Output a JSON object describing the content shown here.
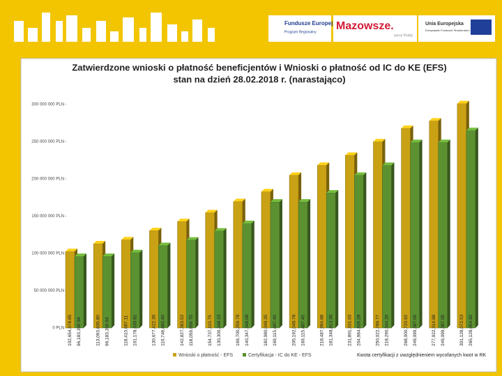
{
  "header": {
    "logo1": "Fundusze Europejskie",
    "logo1_sub": "Program Regionalny",
    "logo2": "Mazowsze.",
    "logo2_sub": "serce Polski",
    "logo3": "Unia Europejska",
    "logo3_sub": "Europejskie Fundusze Strukturalne i Inwestycyjne"
  },
  "chart_data": {
    "type": "bar3d",
    "title": "Zatwierdzone wnioski o płatność beneficjentów i Wnioski o płatność od IC do KE (EFS)",
    "subtitle": "stan na dzień 28.02.2018 r. (narastająco)",
    "note": "Kwota certyfikacji z uwzględnieniem wycofanych kwot w RK",
    "categories": [
      null,
      null,
      null,
      null,
      null,
      null,
      null,
      null,
      null,
      null,
      null,
      null,
      null,
      null,
      null
    ],
    "series": [
      {
        "name": "Wnioski o płatność - EFS",
        "color": "#c9a114",
        "values": [
          102654578.85,
          113093600.8,
          118410687.11,
          130677422.3,
          142827383.52,
          154737113.75,
          169700259.78,
          182980049.35,
          205192049.78,
          218487994.88,
          231891331.03,
          250022789.77,
          268000720.92,
          277922314.88,
          301128072.53
        ],
        "value_labels": [
          "102,654,578.85",
          "113,093,600.80",
          "118,410,687.11",
          "130,677,422.30",
          "142,827,383.52",
          "154,737,113.75",
          "169,700,259.78",
          "182,980,049.35",
          "205,192,049.78",
          "218,487,994.88",
          "231,891,331.03",
          "250,022,789.77",
          "268,000,720.92",
          "277,922,314.88",
          "301,128,072.53"
        ]
      },
      {
        "name": "Certyfikacja - IC do KE - EFS",
        "color": "#5b9130",
        "values": [
          96183390.94,
          96183390.94,
          101178630.91,
          110748483.4,
          118059059.7,
          130300348.23,
          140347348.08,
          169115487.4,
          169115487.4,
          181348813.36,
          204984835.28,
          218290544.2,
          249099387.05,
          249099387.05,
          265128054.92
        ],
        "value_labels": [
          "96,183,390.94",
          "96,183,390.94",
          "101,178,630.91",
          "110,748,483.40",
          "118,059,059.70",
          "130,300,348.23",
          "140,347,348.08",
          "169,115,487.40",
          "169,115,487.40",
          "181,348,813.36",
          "204,984,835.28",
          "218,290,544.20",
          "249,099,387.05",
          "249,099,387.05",
          "265,128,054.92"
        ]
      }
    ],
    "ylim": [
      0,
      300000000
    ],
    "yticks": [
      {
        "value": 0,
        "label": "0 PLN"
      },
      {
        "value": 50000000,
        "label": "50 000 000 PLN"
      },
      {
        "value": 100000000,
        "label": "100 000 000 PLN"
      },
      {
        "value": 150000000,
        "label": "150 000 000 PLN"
      },
      {
        "value": 200000000,
        "label": "200 000 000 PLN"
      },
      {
        "value": 250000000,
        "label": "250 000 000 PLN"
      },
      {
        "value": 300000000,
        "label": "300 000 000 PLN"
      }
    ],
    "grid": false
  }
}
